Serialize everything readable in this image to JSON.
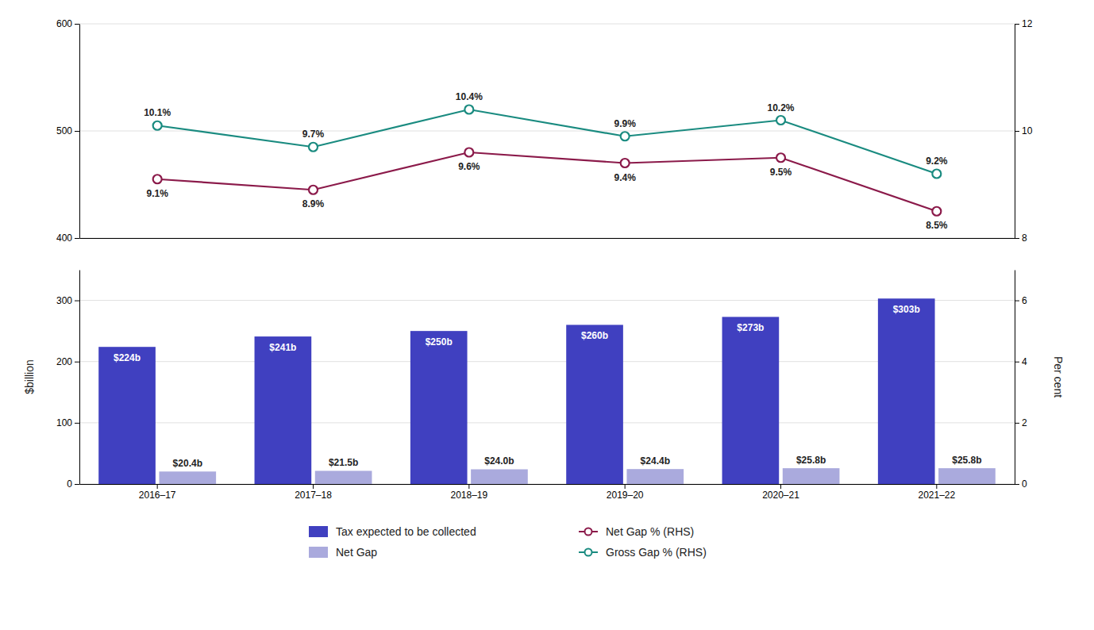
{
  "chart_data": [
    {
      "type": "line",
      "categories": [
        "2016–17",
        "2017–18",
        "2018–19",
        "2019–20",
        "2020–21",
        "2021–22"
      ],
      "series": [
        {
          "name": "Net Gap % (RHS)",
          "color": "#8b1a4a",
          "axis": "y2",
          "marker": "circle",
          "values": [
            9.1,
            8.9,
            9.6,
            9.4,
            9.5,
            8.5
          ],
          "value_labels": [
            "9.1%",
            "8.9%",
            "9.6%",
            "9.4%",
            "9.5%",
            "8.5%"
          ]
        },
        {
          "name": "Gross Gap % (RHS)",
          "color": "#1a8b80",
          "axis": "y2",
          "marker": "circle",
          "values": [
            10.1,
            9.7,
            10.4,
            9.9,
            10.2,
            9.2
          ],
          "value_labels": [
            "10.1%",
            "9.7%",
            "10.4%",
            "9.9%",
            "10.2%",
            "9.2%"
          ]
        }
      ],
      "ylim": [
        400,
        600
      ],
      "yticks": [
        400,
        500,
        600
      ],
      "y2lim": [
        8,
        12
      ],
      "y2ticks": [
        8,
        10,
        12
      ],
      "grid": true,
      "data_labels": true,
      "tick_labels": "y"
    },
    {
      "type": "bar",
      "categories": [
        "2016–17",
        "2017–18",
        "2018–19",
        "2019–20",
        "2020–21",
        "2021–22"
      ],
      "series": [
        {
          "name": "Tax expected to be collected",
          "color": "#4040c0",
          "values": [
            224,
            241,
            250,
            260,
            273,
            303
          ],
          "value_labels": [
            "$224b",
            "$241b",
            "$250b",
            "$260b",
            "$273b",
            "$303b"
          ]
        },
        {
          "name": "Net Gap",
          "color": "#aaaadd",
          "values": [
            20.4,
            21.5,
            24.0,
            24.4,
            25.8,
            25.8
          ],
          "value_labels": [
            "$20.4b",
            "$21.5b",
            "$24.0b",
            "$24.4b",
            "$25.8b",
            "$25.8b"
          ]
        }
      ],
      "ylabel": "$billion",
      "y2label": "Per cent",
      "ylim": [
        0,
        350
      ],
      "yticks": [
        0,
        100,
        200,
        300
      ],
      "y2lim": [
        0,
        7
      ],
      "y2ticks": [
        0,
        2,
        4,
        6
      ],
      "grid": true,
      "data_labels": true,
      "legend": "bottom"
    }
  ]
}
